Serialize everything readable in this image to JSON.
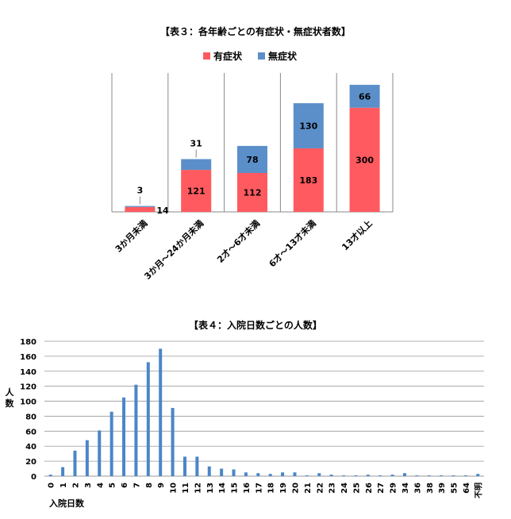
{
  "chart_data": [
    {
      "type": "bar",
      "stacked": true,
      "title": "【表３：各年齢ごとの有症状・無症状者数】",
      "categories": [
        "3か月未満",
        "3か月～24か月未満",
        "2才～6才未満",
        "6才～13才未満",
        "13才以上"
      ],
      "series": [
        {
          "name": "有症状",
          "values": [
            14,
            121,
            112,
            183,
            300
          ],
          "color": "#ff5a5f"
        },
        {
          "name": "無症状",
          "values": [
            3,
            31,
            78,
            130,
            66
          ],
          "color": "#5b8fc9"
        }
      ],
      "legend": "top",
      "grid": false,
      "ylim": [
        0,
        400
      ]
    },
    {
      "type": "bar",
      "title": "【表４：入院日数ごとの人数】",
      "xlabel": "入院日数",
      "ylabel": "人数",
      "categories": [
        "0",
        "1",
        "2",
        "3",
        "4",
        "5",
        "6",
        "7",
        "8",
        "9",
        "10",
        "11",
        "12",
        "13",
        "14",
        "15",
        "16",
        "17",
        "18",
        "19",
        "20",
        "21",
        "22",
        "23",
        "24",
        "25",
        "26",
        "27",
        "29",
        "34",
        "36",
        "38",
        "39",
        "55",
        "64",
        "不明"
      ],
      "series": [
        {
          "values": [
            2,
            12,
            34,
            48,
            61,
            86,
            105,
            122,
            152,
            170,
            91,
            26,
            26,
            13,
            10,
            9,
            5,
            4,
            3,
            5,
            5,
            1,
            4,
            2,
            1,
            1,
            2,
            1,
            2,
            4,
            1,
            1,
            1,
            1,
            1,
            3
          ],
          "color": "#4a86c8"
        }
      ],
      "ylim": [
        0,
        180
      ],
      "yticks": [
        0,
        20,
        40,
        60,
        80,
        100,
        120,
        140,
        160,
        180
      ],
      "grid": true
    }
  ]
}
